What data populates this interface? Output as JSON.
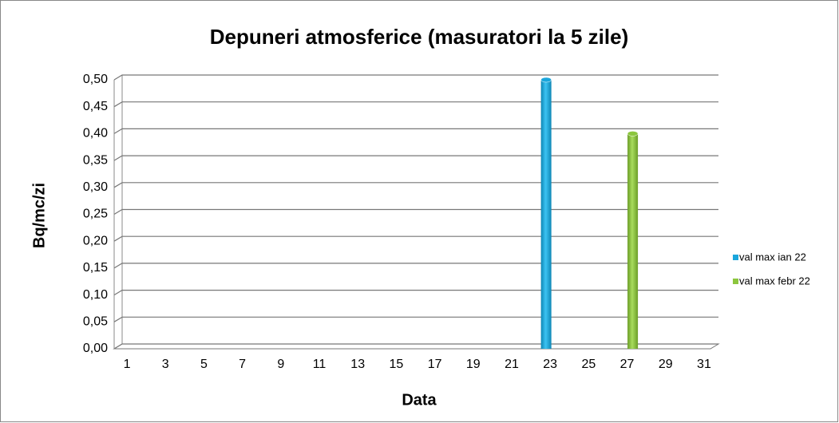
{
  "chart_data": {
    "type": "bar",
    "title": "Depuneri atmosferice (masuratori la 5 zile)",
    "x_label": "Data",
    "y_label": "Bq/mc/zi",
    "categories": [
      "1",
      null,
      "3",
      null,
      "5",
      null,
      "7",
      null,
      "9",
      null,
      "11",
      null,
      "13",
      null,
      "15",
      null,
      "17",
      null,
      "19",
      null,
      "21",
      null,
      "23",
      null,
      "25",
      null,
      "27",
      null,
      "29",
      null,
      "31"
    ],
    "series": [
      {
        "name": "val max ian 22",
        "color": "#1aa6dc",
        "values": [
          null,
          null,
          null,
          null,
          null,
          null,
          null,
          null,
          null,
          null,
          null,
          null,
          null,
          null,
          null,
          null,
          null,
          null,
          null,
          null,
          null,
          null,
          0.5,
          null,
          null,
          null,
          null,
          null,
          null,
          null,
          null
        ]
      },
      {
        "name": "val max febr 22",
        "color": "#8cc63e",
        "values": [
          null,
          null,
          null,
          null,
          null,
          null,
          null,
          null,
          null,
          null,
          null,
          null,
          null,
          null,
          null,
          null,
          null,
          null,
          null,
          null,
          null,
          null,
          null,
          null,
          null,
          null,
          0.4,
          null,
          null,
          null,
          null
        ]
      }
    ],
    "ylim": [
      0,
      0.5
    ],
    "yticks": [
      {
        "value": 0,
        "label": "0,00"
      },
      {
        "value": 0.05,
        "label": "0,05"
      },
      {
        "value": 0.1,
        "label": "0,10"
      },
      {
        "value": 0.15,
        "label": "0,15"
      },
      {
        "value": 0.2,
        "label": "0,20"
      },
      {
        "value": 0.25,
        "label": "0,25"
      },
      {
        "value": 0.3,
        "label": "0,30"
      },
      {
        "value": 0.35,
        "label": "0,35"
      },
      {
        "value": 0.4,
        "label": "0,40"
      },
      {
        "value": 0.45,
        "label": "0,45"
      },
      {
        "value": 0.5,
        "label": "0,50"
      }
    ],
    "grid": true,
    "legend": "right"
  }
}
